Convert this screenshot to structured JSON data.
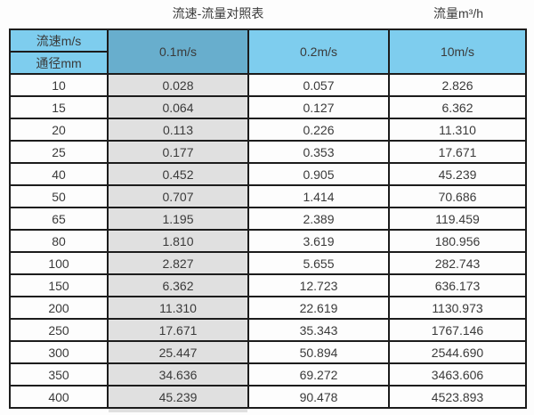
{
  "page": {
    "title": "流速-流量对照表",
    "flow_unit_label": "流量m³/h"
  },
  "colors": {
    "header_blue": "#7ecdee",
    "header_blue_dark": "#68aecd",
    "gray_column": "#e0e0e0",
    "border": "#1c1c1c",
    "text": "#3a3a3a",
    "background": "#fdfdfd"
  },
  "chart_data": {
    "type": "table",
    "title": "流速-流量对照表",
    "unit_header": "流量m³/h",
    "corner_top_label": "流速m/s",
    "corner_bottom_label": "通径mm",
    "velocity_columns": [
      "0.1m/s",
      "0.2m/s",
      "10m/s"
    ],
    "rows": [
      {
        "diameter": "10",
        "values": [
          "0.028",
          "0.057",
          "2.826"
        ]
      },
      {
        "diameter": "15",
        "values": [
          "0.064",
          "0.127",
          "6.362"
        ]
      },
      {
        "diameter": "20",
        "values": [
          "0.113",
          "0.226",
          "11.310"
        ]
      },
      {
        "diameter": "25",
        "values": [
          "0.177",
          "0.353",
          "17.671"
        ]
      },
      {
        "diameter": "40",
        "values": [
          "0.452",
          "0.905",
          "45.239"
        ]
      },
      {
        "diameter": "50",
        "values": [
          "0.707",
          "1.414",
          "70.686"
        ]
      },
      {
        "diameter": "65",
        "values": [
          "1.195",
          "2.389",
          "119.459"
        ]
      },
      {
        "diameter": "80",
        "values": [
          "1.810",
          "3.619",
          "180.956"
        ]
      },
      {
        "diameter": "100",
        "values": [
          "2.827",
          "5.655",
          "282.743"
        ]
      },
      {
        "diameter": "150",
        "values": [
          "6.362",
          "12.723",
          "636.173"
        ]
      },
      {
        "diameter": "200",
        "values": [
          "11.310",
          "22.619",
          "1130.973"
        ]
      },
      {
        "diameter": "250",
        "values": [
          "17.671",
          "35.343",
          "1767.146"
        ]
      },
      {
        "diameter": "300",
        "values": [
          "25.447",
          "50.894",
          "2544.690"
        ]
      },
      {
        "diameter": "350",
        "values": [
          "34.636",
          "69.272",
          "3463.606"
        ]
      },
      {
        "diameter": "400",
        "values": [
          "45.239",
          "90.478",
          "4523.893"
        ]
      }
    ]
  }
}
